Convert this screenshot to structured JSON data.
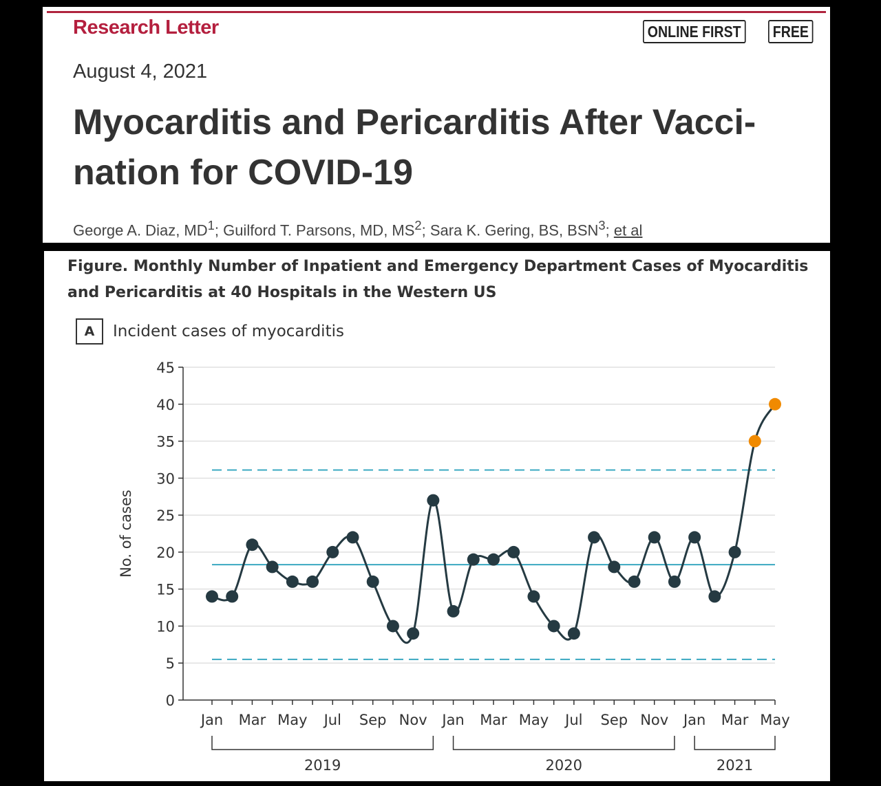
{
  "header": {
    "kicker": "Research Letter",
    "badges": [
      "ONLINE FIRST",
      "FREE"
    ],
    "date": "August 4, 2021",
    "title": "Myocarditis and Pericarditis After Vacci-nation for COVID-19",
    "authors": [
      {
        "name": "George A. Diaz, MD",
        "sup": "1"
      },
      {
        "name": "Guilford T. Parsons, MD, MS",
        "sup": "2"
      },
      {
        "name": "Sara K. Gering, BS, BSN",
        "sup": "3"
      }
    ],
    "et_al": "et al"
  },
  "figure": {
    "caption": "Figure.  Monthly Number of Inpatient and Emergency Department Cases of Myocarditis and Pericarditis at 40 Hospitals in the Western US",
    "panel_letter": "A",
    "panel_title": "Incident cases of myocarditis"
  },
  "chart_data": {
    "type": "line",
    "ylabel": "No. of cases",
    "ylim": [
      0,
      45
    ],
    "yticks": [
      0,
      5,
      10,
      15,
      20,
      25,
      30,
      35,
      40,
      45
    ],
    "xtick_labels": [
      "Jan",
      "Mar",
      "May",
      "Jul",
      "Sep",
      "Nov",
      "Jan",
      "Mar",
      "May",
      "Jul",
      "Sep",
      "Nov",
      "Jan",
      "Mar",
      "May"
    ],
    "year_groups": [
      {
        "label": "2019",
        "months": 12
      },
      {
        "label": "2020",
        "months": 12
      },
      {
        "label": "2021",
        "months": 5
      }
    ],
    "x": [
      "2019-01",
      "2019-02",
      "2019-03",
      "2019-04",
      "2019-05",
      "2019-06",
      "2019-07",
      "2019-08",
      "2019-09",
      "2019-10",
      "2019-11",
      "2019-12",
      "2020-01",
      "2020-02",
      "2020-03",
      "2020-04",
      "2020-05",
      "2020-06",
      "2020-07",
      "2020-08",
      "2020-09",
      "2020-10",
      "2020-11",
      "2020-12",
      "2021-01",
      "2021-02",
      "2021-03",
      "2021-04",
      "2021-05"
    ],
    "values": [
      14,
      14,
      21,
      18,
      16,
      16,
      20,
      22,
      16,
      10,
      9,
      27,
      12,
      19,
      19,
      20,
      14,
      10,
      9,
      22,
      18,
      16,
      22,
      16,
      22,
      14,
      20,
      35,
      40
    ],
    "highlighted_points": [
      "2021-04",
      "2021-05"
    ],
    "center_line": 18.3,
    "upper_control_limit": 31.1,
    "lower_control_limit": 5.5,
    "grid": true,
    "colors": {
      "line": "#253a42",
      "point": "#253a42",
      "highlight": "#f08a00",
      "center": "#3aa8c1",
      "limits": "#3aa8c1",
      "grid": "#e0e0e0"
    }
  }
}
